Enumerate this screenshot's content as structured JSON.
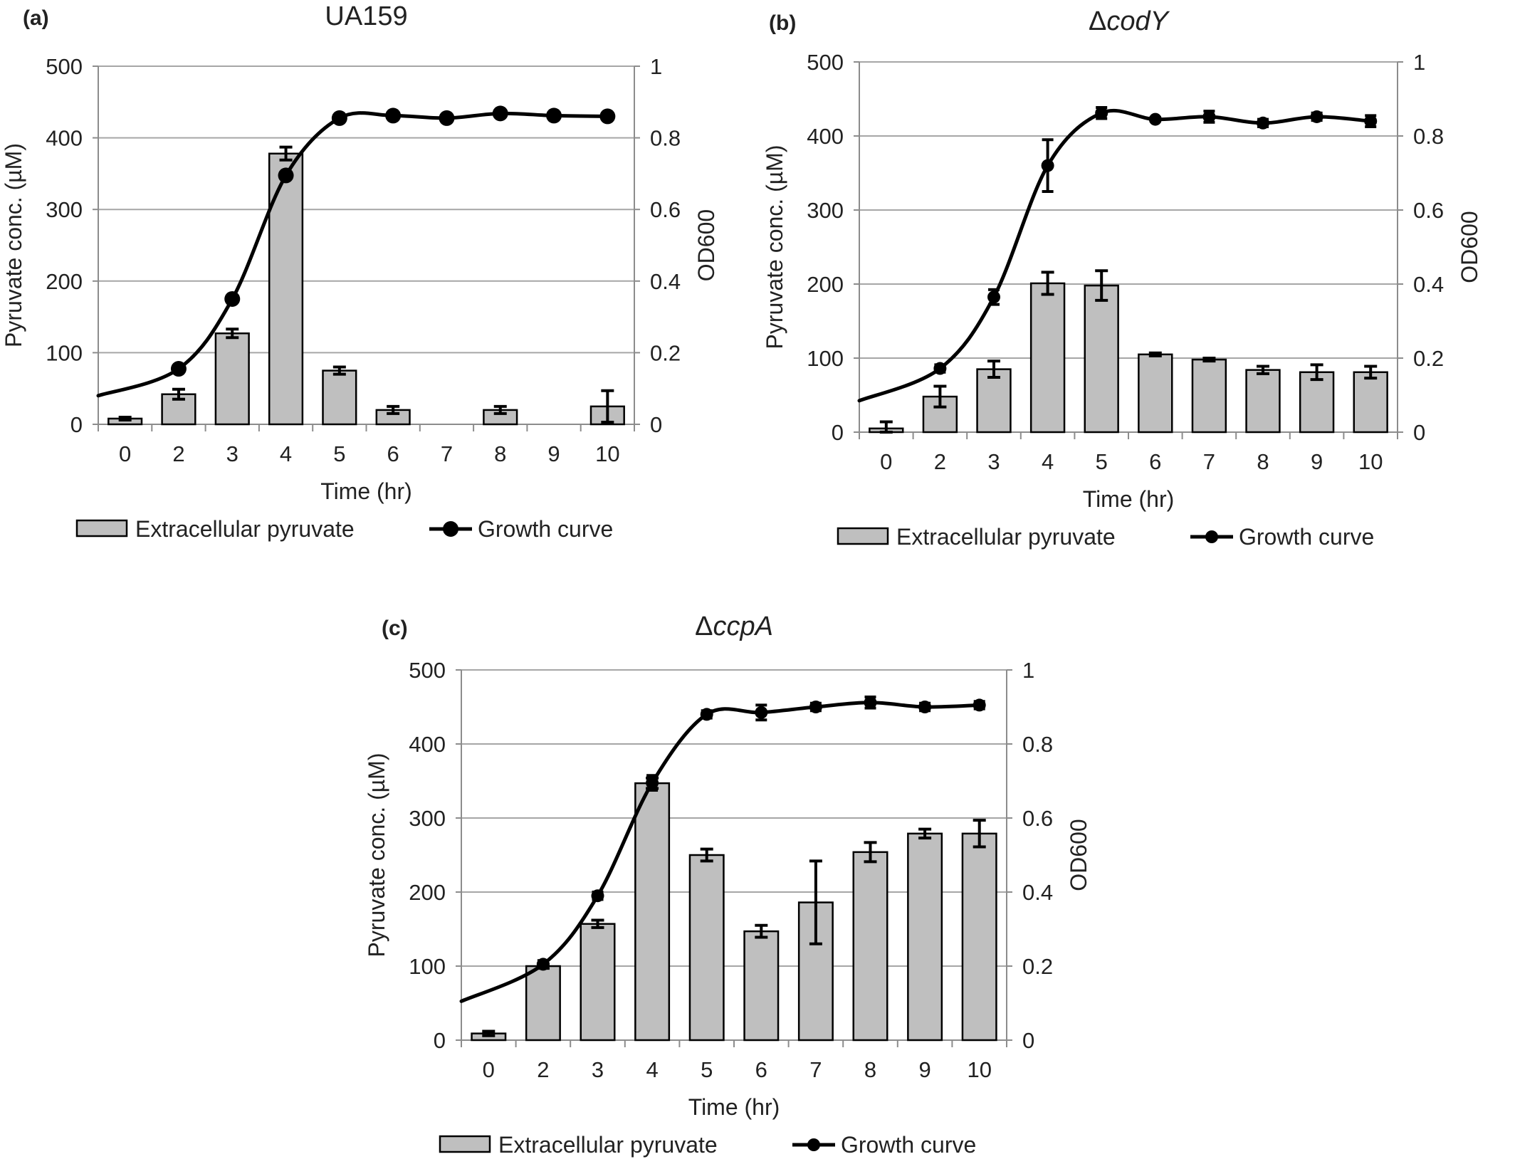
{
  "chart_data": [
    {
      "panel": "(a)",
      "title": "UA159",
      "type": "bar",
      "categories": [
        "0",
        "2",
        "3",
        "4",
        "5",
        "6",
        "7",
        "8",
        "9",
        "10"
      ],
      "xlabel": "Time (hr)",
      "ylabel": "Pyruvate conc. (µM)",
      "y2label": "OD600",
      "ylim": [
        0,
        500
      ],
      "y2lim": [
        0,
        1
      ],
      "yticks": [
        "0",
        "100",
        "200",
        "300",
        "400",
        "500"
      ],
      "y2ticks": [
        "0",
        "0.2",
        "0.4",
        "0.6",
        "0.8",
        "1"
      ],
      "series": [
        {
          "name": "Extracellular pyruvate",
          "type": "bar",
          "axis": "left",
          "values": [
            8,
            42,
            127,
            378,
            75,
            20,
            null,
            20,
            null,
            25
          ],
          "errors": [
            2,
            7,
            6,
            9,
            5,
            5,
            null,
            5,
            null,
            22
          ]
        },
        {
          "name": "Growth curve",
          "type": "line",
          "axis": "right",
          "values": [
            null,
            0.155,
            0.35,
            0.695,
            0.855,
            0.862,
            0.855,
            0.868,
            0.862,
            0.86
          ],
          "start_value": 0.08
        }
      ],
      "legend": "bottom",
      "grid": true
    },
    {
      "panel": "(b)",
      "title_prefix": "Δ",
      "title_italic": "codY",
      "type": "bar",
      "categories": [
        "0",
        "2",
        "3",
        "4",
        "5",
        "6",
        "7",
        "8",
        "9",
        "10"
      ],
      "xlabel": "Time (hr)",
      "ylabel": "Pyruvate conc. (µM)",
      "y2label": "OD600",
      "ylim": [
        0,
        500
      ],
      "y2lim": [
        0,
        1
      ],
      "yticks": [
        "0",
        "100",
        "200",
        "300",
        "400",
        "500"
      ],
      "y2ticks": [
        "0",
        "0.2",
        "0.4",
        "0.6",
        "0.8",
        "1"
      ],
      "series": [
        {
          "name": "Extracellular pyruvate",
          "type": "bar",
          "axis": "left",
          "values": [
            5,
            48,
            85,
            201,
            198,
            105,
            98,
            84,
            81,
            81
          ],
          "errors": [
            9,
            14,
            11,
            15,
            20,
            2,
            2,
            5,
            10,
            8
          ]
        },
        {
          "name": "Growth curve",
          "type": "line",
          "axis": "right",
          "values": [
            null,
            0.172,
            0.365,
            0.72,
            0.862,
            0.845,
            0.852,
            0.835,
            0.852,
            0.84
          ],
          "errors": [
            null,
            0.01,
            0.02,
            0.07,
            0.015,
            0.005,
            0.015,
            0.01,
            0.01,
            0.015
          ],
          "start_value": 0.085
        }
      ],
      "legend": "bottom",
      "grid": true
    },
    {
      "panel": "(c)",
      "title_prefix": "Δ",
      "title_italic": "ccpA",
      "type": "bar",
      "categories": [
        "0",
        "2",
        "3",
        "4",
        "5",
        "6",
        "7",
        "8",
        "9",
        "10"
      ],
      "xlabel": "Time (hr)",
      "ylabel": "Pyruvate conc. (µM)",
      "y2label": "OD600",
      "ylim": [
        0,
        500
      ],
      "y2lim": [
        0,
        1
      ],
      "yticks": [
        "0",
        "100",
        "200",
        "300",
        "400",
        "500"
      ],
      "y2ticks": [
        "0",
        "0.2",
        "0.4",
        "0.6",
        "0.8",
        "1"
      ],
      "series": [
        {
          "name": "Extracellular pyruvate",
          "type": "bar",
          "axis": "left",
          "values": [
            9,
            100,
            157,
            347,
            250,
            147,
            186,
            254,
            279,
            279
          ],
          "errors": [
            3,
            3,
            5,
            7,
            8,
            8,
            56,
            13,
            6,
            18
          ]
        },
        {
          "name": "Growth curve",
          "type": "line",
          "axis": "right",
          "values": [
            null,
            0.205,
            0.39,
            0.695,
            0.88,
            0.885,
            0.9,
            0.912,
            0.9,
            0.905
          ],
          "errors": [
            null,
            0.01,
            0.01,
            0.02,
            0.01,
            0.02,
            0.01,
            0.015,
            0.01,
            0.01
          ],
          "start_value": 0.105
        }
      ],
      "legend": "bottom",
      "grid": true
    }
  ]
}
